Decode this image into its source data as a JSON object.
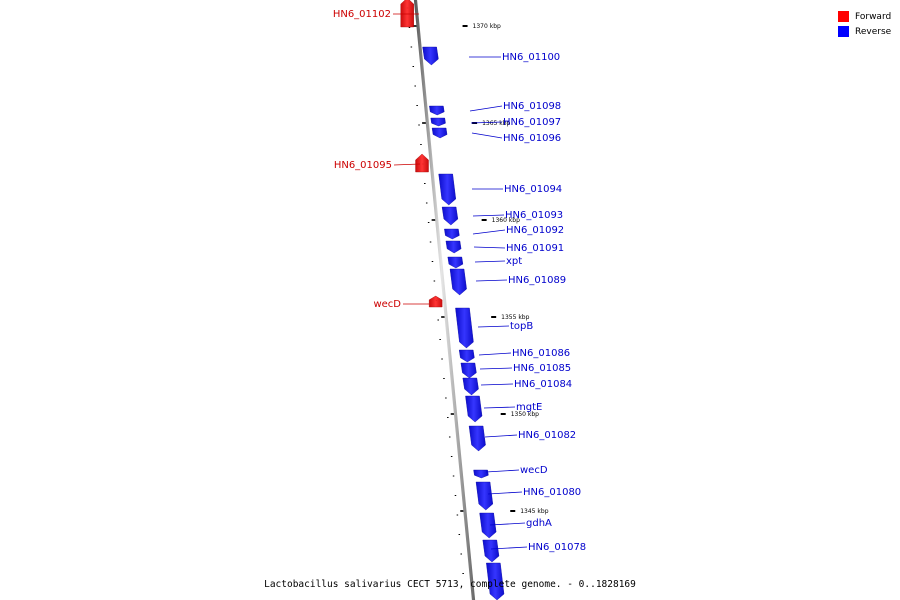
{
  "legend": {
    "forward": {
      "label": "Forward",
      "color": "#ff0000"
    },
    "reverse": {
      "label": "Reverse",
      "color": "#0000ff"
    }
  },
  "caption": "Lactobacillus salivarius CECT 5713, complete genome. - 0..1828169",
  "scale_labels": [
    "1370 kbp",
    "1365 kbp",
    "1360 kbp",
    "1355 kbp",
    "1350 kbp",
    "1345 kbp"
  ],
  "genes": [
    {
      "name": "HN6_01102",
      "strand": "forward"
    },
    {
      "name": "HN6_01100",
      "strand": "reverse"
    },
    {
      "name": "HN6_01098",
      "strand": "reverse"
    },
    {
      "name": "HN6_01097",
      "strand": "reverse"
    },
    {
      "name": "HN6_01096",
      "strand": "reverse"
    },
    {
      "name": "HN6_01095",
      "strand": "forward"
    },
    {
      "name": "HN6_01094",
      "strand": "reverse"
    },
    {
      "name": "HN6_01093",
      "strand": "reverse"
    },
    {
      "name": "HN6_01092",
      "strand": "reverse"
    },
    {
      "name": "HN6_01091",
      "strand": "reverse"
    },
    {
      "name": "xpt",
      "strand": "reverse"
    },
    {
      "name": "HN6_01089",
      "strand": "reverse"
    },
    {
      "name": "wecD",
      "strand": "forward"
    },
    {
      "name": "topB",
      "strand": "reverse"
    },
    {
      "name": "HN6_01086",
      "strand": "reverse"
    },
    {
      "name": "HN6_01085",
      "strand": "reverse"
    },
    {
      "name": "HN6_01084",
      "strand": "reverse"
    },
    {
      "name": "mgtE",
      "strand": "reverse"
    },
    {
      "name": "HN6_01082",
      "strand": "reverse"
    },
    {
      "name": "wecD",
      "strand": "reverse"
    },
    {
      "name": "HN6_01080",
      "strand": "reverse"
    },
    {
      "name": "gdhA",
      "strand": "reverse"
    },
    {
      "name": "HN6_01078",
      "strand": "reverse"
    },
    {
      "name": "",
      "strand": "reverse"
    }
  ]
}
